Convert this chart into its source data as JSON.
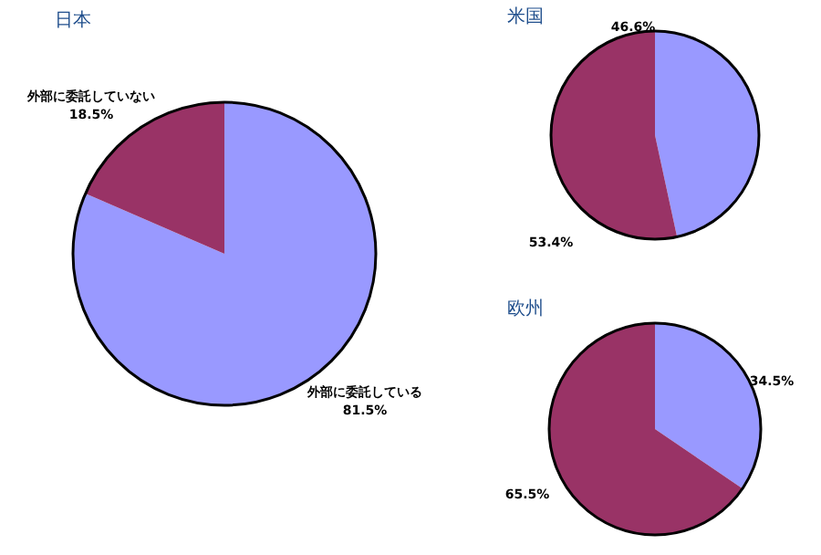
{
  "chart_data": [
    {
      "type": "pie",
      "title": "日本",
      "categories": [
        "外部に委託している",
        "外部に委託していない"
      ],
      "values": [
        81.5,
        18.5
      ],
      "colors": [
        "#9999ff",
        "#993366"
      ],
      "value_labels": [
        "81.5%",
        "18.5%"
      ]
    },
    {
      "type": "pie",
      "title": "米国",
      "categories": [
        null,
        null
      ],
      "values": [
        46.6,
        53.4
      ],
      "colors": [
        "#9999ff",
        "#993366"
      ],
      "value_labels": [
        "46.6%",
        "53.4%"
      ]
    },
    {
      "type": "pie",
      "title": "欧州",
      "categories": [
        null,
        null
      ],
      "values": [
        34.5,
        65.5
      ],
      "colors": [
        "#9999ff",
        "#993366"
      ],
      "value_labels": [
        "34.5%",
        "65.5%"
      ]
    }
  ]
}
